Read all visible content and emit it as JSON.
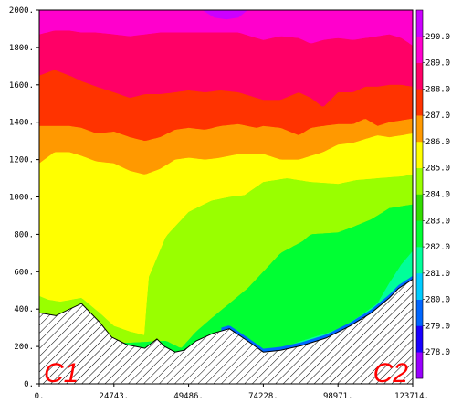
{
  "chart_data": {
    "type": "area",
    "title": "",
    "xlabel": "",
    "ylabel": "",
    "xlim": [
      0,
      123714
    ],
    "ylim": [
      0,
      2000
    ],
    "x_ticks": [
      0,
      24743,
      49486,
      74228,
      98971,
      123714
    ],
    "x_tick_labels": [
      "0.",
      "24743.",
      "49486.",
      "74228.",
      "98971.",
      "123714."
    ],
    "y_ticks": [
      0,
      200,
      400,
      600,
      800,
      1000,
      1200,
      1400,
      1600,
      1800,
      2000
    ],
    "y_tick_labels": [
      "0.",
      "200.",
      "400.",
      "600.",
      "800.",
      "1000.",
      "1200.",
      "1400.",
      "1600.",
      "1800.",
      "2000."
    ],
    "end_labels": {
      "left": "C1",
      "right": "C2"
    },
    "colorbar": {
      "labels": [
        "278.0",
        "279.0",
        "280.0",
        "281.0",
        "282.0",
        "283.0",
        "284.0",
        "285.0",
        "286.0",
        "287.0",
        "288.0",
        "289.0",
        "290.0"
      ],
      "colors": [
        "#9900ff",
        "#1a00ff",
        "#0066ff",
        "#00ccff",
        "#00ff99",
        "#00ff33",
        "#33dd00",
        "#99ff00",
        "#ffff00",
        "#ff9900",
        "#ff3300",
        "#ff0066",
        "#ff00cc",
        "#cc00ff"
      ]
    },
    "bands": [
      {
        "level": "<278.0",
        "color": "#9900ff"
      },
      {
        "level": "278.0-279.0",
        "color": "#1a00ff"
      },
      {
        "level": "279.0-280.0",
        "color": "#0066ff"
      },
      {
        "level": "280.0-281.0",
        "color": "#00ccff"
      },
      {
        "level": "281.0-282.0",
        "color": "#00ff99"
      },
      {
        "level": "282.0-283.0",
        "color": "#00ff33"
      },
      {
        "level": "283.0-284.0",
        "color": "#33dd00"
      },
      {
        "level": "284.0-285.0",
        "color": "#99ff00"
      },
      {
        "level": "285.0-286.0",
        "color": "#ffff00"
      },
      {
        "level": "286.0-287.0",
        "color": "#ff9900"
      },
      {
        "level": "287.0-288.0",
        "color": "#ff3300"
      },
      {
        "level": "288.0-289.0",
        "color": "#ff0066"
      },
      {
        "level": "289.0-290.0",
        "color": "#ff00cc"
      },
      {
        "level": ">290.0",
        "color": "#cc00ff"
      }
    ],
    "terrain": {
      "x": [
        0,
        5500,
        14000,
        20000,
        24000,
        29000,
        35000,
        39000,
        41500,
        45000,
        48000,
        52000,
        57500,
        63000,
        69000,
        74228,
        80000,
        87000,
        95000,
        103000,
        110000,
        116000,
        119000,
        123714
      ],
      "y": [
        380,
        365,
        430,
        330,
        250,
        210,
        190,
        240,
        200,
        170,
        180,
        230,
        270,
        295,
        230,
        170,
        180,
        205,
        245,
        310,
        380,
        460,
        510,
        560
      ]
    },
    "isolines": [
      {
        "level": 284.0,
        "x": [
          0,
          3000,
          7000,
          14000,
          20000,
          24743,
          30000,
          35000,
          36000,
          42000,
          49486,
          57000,
          63000,
          68000,
          74228,
          82000,
          90000,
          98971,
          105000,
          112000,
          120000,
          123714
        ],
        "y": [
          470,
          450,
          440,
          460,
          380,
          310,
          280,
          260,
          560,
          790,
          920,
          980,
          1000,
          1010,
          1080,
          1100,
          1080,
          1070,
          1090,
          1100,
          1110,
          1120
        ]
      },
      {
        "level": 283.0,
        "x": [
          24000,
          30000,
          36000,
          42000,
          47000,
          52000,
          57000,
          63000,
          69000,
          74228,
          80000,
          87000,
          90000,
          98971,
          104000,
          110000,
          116000,
          123714
        ],
        "y": [
          220,
          220,
          225,
          230,
          190,
          280,
          350,
          430,
          510,
          600,
          700,
          760,
          800,
          810,
          840,
          880,
          940,
          960
        ]
      },
      {
        "level": 282.0,
        "x": [
          60000,
          66000,
          74228,
          80000,
          87000,
          95000,
          100000,
          106000,
          112000,
          116000,
          120000,
          123714
        ],
        "y": [
          290,
          230,
          185,
          190,
          230,
          270,
          300,
          360,
          430,
          540,
          640,
          710
        ]
      },
      {
        "level": 281.0,
        "x": [
          80000,
          85000,
          92000,
          100000,
          106000,
          112000,
          116000,
          120000,
          123714
        ],
        "y": [
          190,
          210,
          245,
          285,
          330,
          380,
          450,
          520,
          580
        ]
      },
      {
        "level": 286.0,
        "x": [
          0,
          5000,
          10000,
          14000,
          19000,
          24743,
          30000,
          35000,
          40000,
          45000,
          49486,
          55000,
          60000,
          66000,
          72000,
          74228,
          80000,
          86000,
          90000,
          94000,
          98971,
          104000,
          108000,
          112000,
          116000,
          120000,
          123714
        ],
        "y": [
          1180,
          1240,
          1240,
          1220,
          1190,
          1180,
          1140,
          1120,
          1150,
          1200,
          1210,
          1200,
          1210,
          1230,
          1230,
          1230,
          1200,
          1200,
          1220,
          1240,
          1280,
          1290,
          1310,
          1330,
          1320,
          1330,
          1340
        ]
      },
      {
        "level": 287.0,
        "x": [
          0,
          5000,
          10000,
          14000,
          19000,
          24743,
          30000,
          35000,
          40000,
          45000,
          49486,
          55000,
          60000,
          66000,
          72000,
          74228,
          80000,
          86000,
          90000,
          94000,
          98971,
          104000,
          108000,
          112000,
          116000,
          120000,
          123714
        ],
        "y": [
          1380,
          1380,
          1380,
          1370,
          1340,
          1350,
          1320,
          1300,
          1320,
          1360,
          1370,
          1360,
          1380,
          1390,
          1370,
          1380,
          1370,
          1330,
          1370,
          1380,
          1390,
          1390,
          1420,
          1380,
          1400,
          1410,
          1420
        ]
      },
      {
        "level": 288.0,
        "x": [
          0,
          5000,
          10000,
          14000,
          19000,
          24743,
          30000,
          35000,
          40000,
          45000,
          49486,
          55000,
          60000,
          66000,
          72000,
          74228,
          80000,
          86000,
          90000,
          94000,
          98971,
          104000,
          108000,
          112000,
          116000,
          120000,
          123714
        ],
        "y": [
          1650,
          1680,
          1650,
          1620,
          1590,
          1560,
          1530,
          1550,
          1550,
          1560,
          1570,
          1560,
          1570,
          1560,
          1530,
          1520,
          1520,
          1560,
          1530,
          1480,
          1560,
          1560,
          1590,
          1590,
          1600,
          1600,
          1590
        ]
      },
      {
        "level": 289.0,
        "x": [
          0,
          5000,
          10000,
          14000,
          19000,
          24743,
          30000,
          35000,
          40000,
          45000,
          49486,
          55000,
          60000,
          66000,
          72000,
          74228,
          80000,
          86000,
          90000,
          94000,
          98971,
          104000,
          108000,
          112000,
          116000,
          120000,
          123714
        ],
        "y": [
          1870,
          1890,
          1890,
          1880,
          1880,
          1870,
          1860,
          1870,
          1880,
          1880,
          1880,
          1880,
          1880,
          1880,
          1850,
          1840,
          1860,
          1850,
          1820,
          1840,
          1850,
          1840,
          1850,
          1860,
          1870,
          1850,
          1810
        ]
      },
      {
        "level": 290.0,
        "x": [
          54000,
          58000,
          62000,
          66000,
          69000
        ],
        "y": [
          2000,
          1960,
          1950,
          1960,
          2000
        ]
      }
    ]
  }
}
